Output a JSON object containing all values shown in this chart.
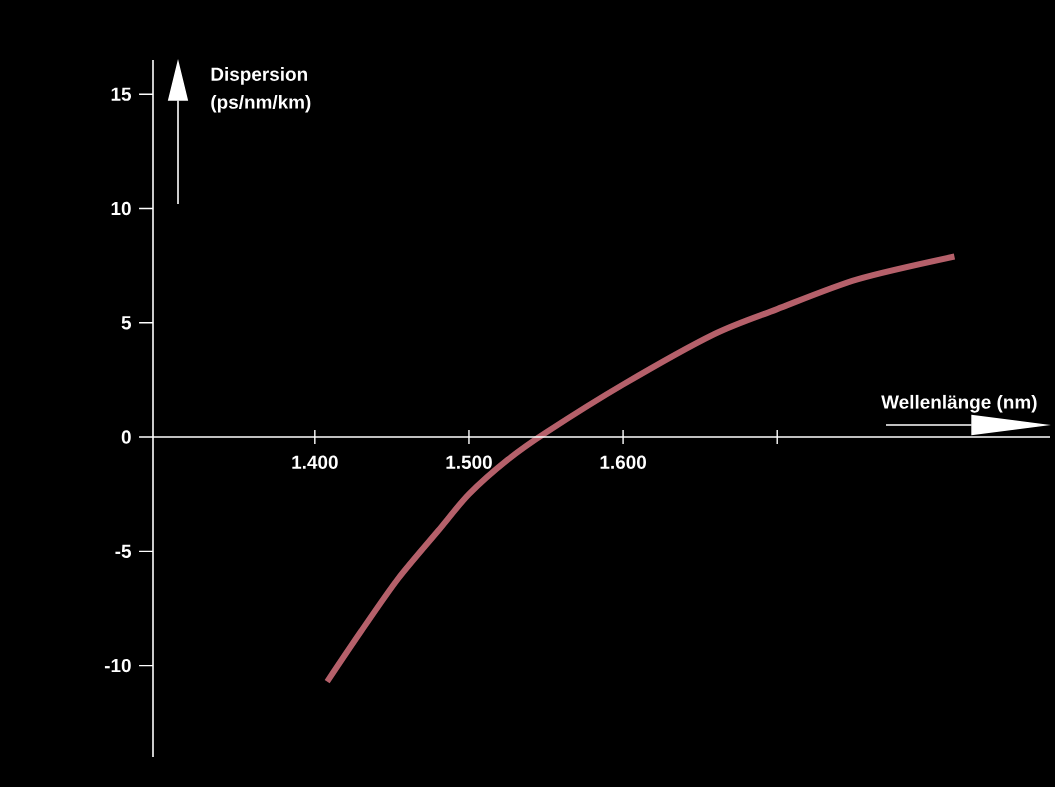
{
  "chart_data": {
    "type": "line",
    "xlabel": "Wellenlänge (nm)",
    "ylabel": "Dispersion (ps/nm/km)",
    "x": [
      1408,
      1430,
      1454,
      1480,
      1500,
      1525,
      1550,
      1600,
      1659,
      1700,
      1752,
      1815
    ],
    "values": [
      -10.7,
      -8.5,
      -6.2,
      -4.1,
      -2.5,
      -1.0,
      0.2,
      2.3,
      4.5,
      5.6,
      6.9,
      7.9
    ],
    "color": "#b5606a",
    "xlim": [
      1295,
      1877
    ],
    "ylim": [
      -14,
      16.5
    ],
    "xticks": [
      {
        "value": 1400,
        "label": "1.400"
      },
      {
        "value": 1500,
        "label": "1.500"
      },
      {
        "value": 1600,
        "label": "1.600"
      },
      {
        "value": 1700,
        "label": null
      }
    ],
    "yticks": [
      -10,
      -5,
      0,
      5,
      10,
      15
    ]
  }
}
